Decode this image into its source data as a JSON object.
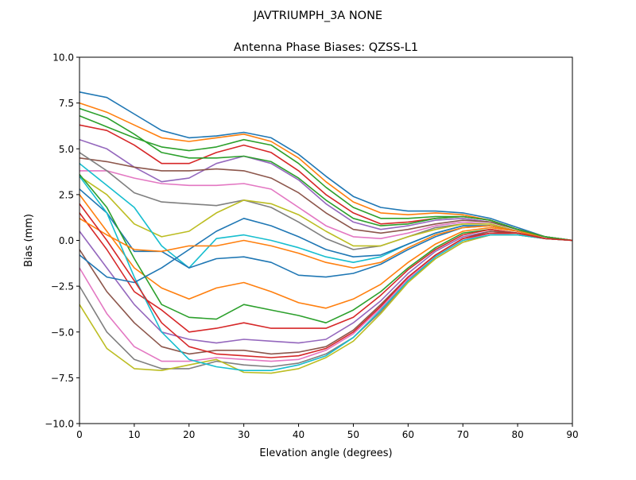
{
  "chart_data": {
    "type": "line",
    "suptitle": "JAVTRIUMPH_3A   NONE",
    "title": "Antenna Phase Biases: QZSS-L1",
    "xlabel": "Elevation angle (degrees)",
    "ylabel": "Bias (mm)",
    "xlim": [
      0,
      90
    ],
    "ylim": [
      -10,
      10
    ],
    "xticks": [
      "0",
      "10",
      "20",
      "30",
      "40",
      "50",
      "60",
      "70",
      "80",
      "90"
    ],
    "yticks": [
      "−10.0",
      "−7.5",
      "−5.0",
      "−2.5",
      "0.0",
      "2.5",
      "5.0",
      "7.5",
      "10.0"
    ],
    "grid": false,
    "colors": [
      "#1f77b4",
      "#ff7f0e",
      "#2ca02c",
      "#d62728",
      "#9467bd",
      "#8c564b",
      "#e377c2",
      "#7f7f7f",
      "#bcbd22",
      "#17becf"
    ],
    "x": [
      0,
      5,
      10,
      15,
      20,
      25,
      30,
      35,
      40,
      45,
      50,
      55,
      60,
      65,
      70,
      75,
      80,
      85,
      90
    ],
    "series": [
      {
        "values": [
          8.1,
          7.8,
          6.9,
          6.0,
          5.6,
          5.7,
          5.9,
          5.6,
          4.7,
          3.5,
          2.4,
          1.8,
          1.6,
          1.6,
          1.5,
          1.2,
          0.7,
          0.2,
          0
        ]
      },
      {
        "values": [
          7.5,
          7.0,
          6.3,
          5.6,
          5.4,
          5.6,
          5.8,
          5.4,
          4.5,
          3.2,
          2.1,
          1.5,
          1.4,
          1.5,
          1.4,
          1.1,
          0.6,
          0.2,
          0
        ]
      },
      {
        "values": [
          6.8,
          6.2,
          5.6,
          5.1,
          4.9,
          5.1,
          5.5,
          5.2,
          4.2,
          2.9,
          1.8,
          1.2,
          1.2,
          1.3,
          1.3,
          1.1,
          0.6,
          0.2,
          0
        ]
      },
      {
        "values": [
          6.3,
          6.0,
          5.2,
          4.2,
          4.2,
          4.8,
          5.2,
          4.8,
          3.8,
          2.5,
          1.5,
          0.9,
          1.0,
          1.2,
          1.3,
          1.1,
          0.6,
          0.2,
          0
        ]
      },
      {
        "values": [
          5.5,
          5.0,
          4.0,
          3.2,
          3.4,
          4.2,
          4.6,
          4.2,
          3.3,
          2.0,
          1.0,
          0.6,
          0.8,
          1.1,
          1.2,
          1.0,
          0.6,
          0.2,
          0
        ]
      },
      {
        "values": [
          4.5,
          4.3,
          4.0,
          3.8,
          3.8,
          3.9,
          3.8,
          3.4,
          2.6,
          1.5,
          0.6,
          0.4,
          0.6,
          0.9,
          1.1,
          1.0,
          0.6,
          0.2,
          0
        ]
      },
      {
        "values": [
          3.8,
          3.8,
          3.4,
          3.1,
          3.0,
          3.0,
          3.1,
          2.8,
          1.8,
          0.8,
          0.2,
          0.1,
          0.4,
          0.8,
          1.0,
          0.9,
          0.5,
          0.2,
          0
        ]
      },
      {
        "values": [
          4.8,
          3.8,
          2.6,
          2.1,
          2.0,
          1.9,
          2.2,
          1.8,
          1.0,
          0.1,
          -0.5,
          -0.3,
          0.2,
          0.7,
          0.9,
          0.9,
          0.5,
          0.2,
          0
        ]
      },
      {
        "values": [
          3.5,
          2.5,
          0.9,
          0.2,
          0.5,
          1.5,
          2.2,
          2.0,
          1.4,
          0.5,
          -0.3,
          -0.3,
          0.2,
          0.6,
          0.9,
          0.9,
          0.5,
          0.2,
          0
        ]
      },
      {
        "values": [
          4.2,
          3.0,
          1.8,
          -0.3,
          -1.5,
          0.1,
          0.3,
          0.0,
          -0.4,
          -0.9,
          -1.2,
          -0.9,
          -0.2,
          0.4,
          0.8,
          0.8,
          0.5,
          0.2,
          0
        ]
      },
      {
        "values": [
          2.8,
          1.5,
          -0.6,
          -0.6,
          -1.5,
          -1.0,
          -0.9,
          -1.2,
          -1.9,
          -2.0,
          -1.8,
          -1.3,
          -0.5,
          0.2,
          0.7,
          0.8,
          0.5,
          0.2,
          0
        ]
      },
      {
        "values": [
          2.5,
          0.5,
          -1.5,
          -2.6,
          -3.2,
          -2.6,
          -2.3,
          -2.8,
          -3.4,
          -3.7,
          -3.2,
          -2.4,
          -1.2,
          -0.2,
          0.5,
          0.7,
          0.5,
          0.1,
          0
        ]
      },
      {
        "values": [
          3.6,
          1.8,
          -1.0,
          -3.5,
          -4.2,
          -4.3,
          -3.5,
          -3.8,
          -4.1,
          -4.5,
          -3.8,
          -2.8,
          -1.5,
          -0.4,
          0.4,
          0.6,
          0.4,
          0.1,
          0
        ]
      },
      {
        "values": [
          1.5,
          -0.5,
          -2.8,
          -3.8,
          -5.0,
          -4.8,
          -4.5,
          -4.8,
          -4.8,
          -4.8,
          -4.2,
          -3.0,
          -1.6,
          -0.5,
          0.3,
          0.6,
          0.4,
          0.1,
          0
        ]
      },
      {
        "values": [
          0.5,
          -1.5,
          -3.5,
          -5.0,
          -5.4,
          -5.6,
          -5.4,
          -5.5,
          -5.6,
          -5.4,
          -4.5,
          -3.3,
          -1.8,
          -0.6,
          0.2,
          0.5,
          0.4,
          0.1,
          0
        ]
      },
      {
        "values": [
          -0.5,
          -2.8,
          -4.5,
          -5.8,
          -6.2,
          -6.0,
          -6.0,
          -6.2,
          -6.1,
          -5.8,
          -4.9,
          -3.5,
          -2.0,
          -0.8,
          0.1,
          0.5,
          0.4,
          0.1,
          0
        ]
      },
      {
        "values": [
          -1.5,
          -4.0,
          -5.8,
          -6.6,
          -6.6,
          -6.4,
          -6.5,
          -6.6,
          -6.5,
          -6.0,
          -5.1,
          -3.7,
          -2.1,
          -0.9,
          0.0,
          0.4,
          0.3,
          0.1,
          0
        ]
      },
      {
        "values": [
          -2.5,
          -5.0,
          -6.5,
          -7.0,
          -7.0,
          -6.6,
          -6.8,
          -6.9,
          -6.7,
          -6.2,
          -5.3,
          -3.9,
          -2.2,
          -1.0,
          -0.1,
          0.3,
          0.3,
          0.1,
          0
        ]
      },
      {
        "values": [
          -3.5,
          -5.9,
          -7.0,
          -7.1,
          -6.8,
          -6.5,
          -7.2,
          -7.25,
          -7.0,
          -6.4,
          -5.5,
          -4.0,
          -2.3,
          -1.0,
          -0.1,
          0.3,
          0.3,
          0.1,
          0
        ]
      },
      {
        "values": [
          3.5,
          1.5,
          -2.0,
          -5.0,
          -6.5,
          -6.9,
          -7.1,
          -7.1,
          -6.8,
          -6.3,
          -5.3,
          -3.8,
          -2.2,
          -0.9,
          0.0,
          0.3,
          0.3,
          0.1,
          0
        ]
      },
      {
        "values": [
          -0.8,
          -2.0,
          -2.3,
          -1.5,
          -0.5,
          0.5,
          1.2,
          0.8,
          0.2,
          -0.5,
          -0.9,
          -0.8,
          -0.2,
          0.4,
          0.8,
          0.8,
          0.5,
          0.2,
          0
        ]
      },
      {
        "values": [
          1.2,
          0.3,
          -0.5,
          -0.6,
          -0.3,
          -0.3,
          0.0,
          -0.3,
          -0.7,
          -1.2,
          -1.5,
          -1.2,
          -0.4,
          0.3,
          0.7,
          0.8,
          0.5,
          0.2,
          0
        ]
      },
      {
        "values": [
          7.2,
          6.7,
          5.8,
          4.8,
          4.5,
          4.5,
          4.6,
          4.3,
          3.4,
          2.2,
          1.2,
          0.8,
          0.9,
          1.2,
          1.3,
          1.1,
          0.6,
          0.2,
          0
        ]
      },
      {
        "values": [
          2.0,
          0.0,
          -2.2,
          -4.5,
          -5.8,
          -6.2,
          -6.3,
          -6.4,
          -6.3,
          -5.9,
          -5.0,
          -3.6,
          -2.0,
          -0.8,
          0.1,
          0.4,
          0.4,
          0.1,
          0
        ]
      }
    ]
  }
}
